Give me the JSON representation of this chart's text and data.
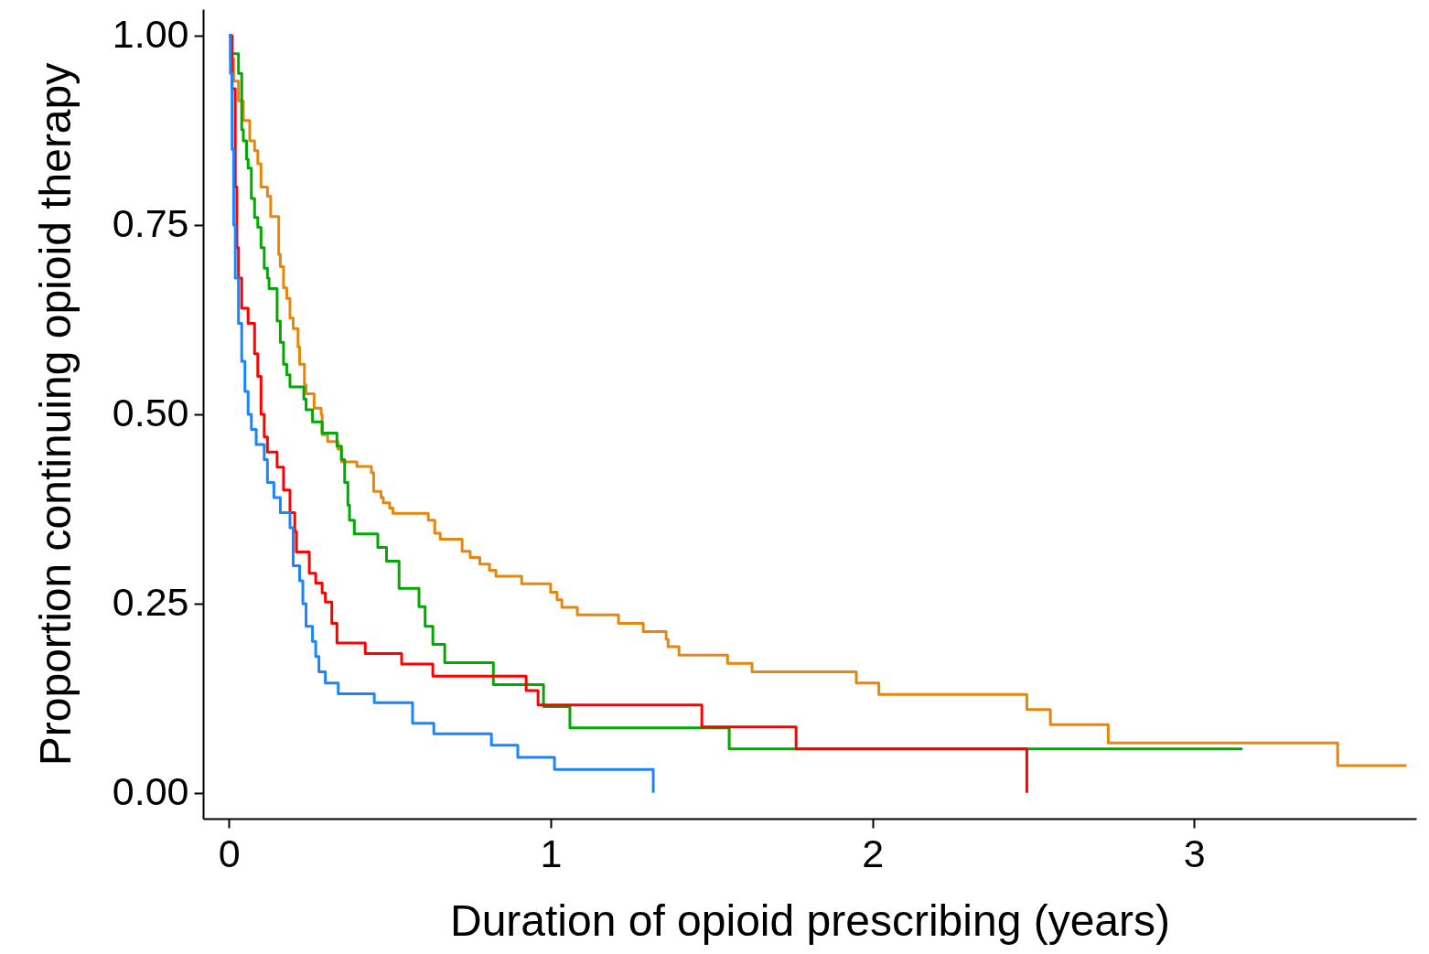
{
  "chart_data": {
    "type": "step",
    "xlabel": "Duration of opioid prescribing (years)",
    "ylabel": "Proportion continuing opioid therapy",
    "xlim": [
      -0.08,
      3.69
    ],
    "ylim": [
      -0.034,
      1.035
    ],
    "xticks": [
      0,
      1,
      2,
      3
    ],
    "yticks": [
      {
        "value": 0,
        "label": "0.00"
      },
      {
        "value": 0.25,
        "label": "0.25"
      },
      {
        "value": 0.5,
        "label": "0.50"
      },
      {
        "value": 0.75,
        "label": "0.75"
      },
      {
        "value": 1,
        "label": "1.00"
      }
    ],
    "grid": false,
    "line_style": "solid",
    "series": [
      {
        "color": "#e8860a",
        "x": [
          0,
          0.005,
          0.015,
          0.03,
          0.045,
          0.065,
          0.08,
          0.09,
          0.1,
          0.12,
          0.13,
          0.155,
          0.16,
          0.17,
          0.18,
          0.19,
          0.2,
          0.215,
          0.22,
          0.235,
          0.24,
          0.265,
          0.287,
          0.29,
          0.307,
          0.339,
          0.35,
          0.398,
          0.443,
          0.45,
          0.473,
          0.48,
          0.5,
          0.51,
          0.62,
          0.64,
          0.657,
          0.725,
          0.75,
          0.78,
          0.81,
          0.83,
          0.91,
          1.0,
          1.02,
          1.035,
          1.083,
          1.211,
          1.288,
          1.359,
          1.365,
          1.399,
          1.55,
          1.626,
          1.95,
          2.02,
          2.48,
          2.553,
          2.733,
          3.446,
          3.66
        ],
        "values": [
          1,
          0.97,
          0.94,
          0.914,
          0.888,
          0.861,
          0.848,
          0.831,
          0.8,
          0.788,
          0.761,
          0.711,
          0.695,
          0.667,
          0.653,
          0.627,
          0.613,
          0.589,
          0.566,
          0.539,
          0.527,
          0.508,
          0.5,
          0.473,
          0.464,
          0.454,
          0.437,
          0.431,
          0.423,
          0.398,
          0.39,
          0.383,
          0.376,
          0.369,
          0.36,
          0.343,
          0.335,
          0.319,
          0.311,
          0.302,
          0.294,
          0.286,
          0.276,
          0.265,
          0.255,
          0.245,
          0.235,
          0.224,
          0.213,
          0.203,
          0.193,
          0.182,
          0.171,
          0.16,
          0.145,
          0.13,
          0.11,
          0.09,
          0.066,
          0.036,
          0.036
        ]
      },
      {
        "color": "#00aa00",
        "x": [
          0,
          0.01,
          0.03,
          0.04,
          0.045,
          0.055,
          0.06,
          0.07,
          0.08,
          0.09,
          0.1,
          0.11,
          0.12,
          0.125,
          0.15,
          0.16,
          0.17,
          0.18,
          0.19,
          0.233,
          0.24,
          0.26,
          0.29,
          0.336,
          0.35,
          0.36,
          0.37,
          0.375,
          0.39,
          0.463,
          0.49,
          0.529,
          0.591,
          0.61,
          0.634,
          0.671,
          0.822,
          0.978,
          1.06,
          1.555,
          3.15
        ],
        "values": [
          1,
          0.976,
          0.95,
          0.876,
          0.861,
          0.837,
          0.825,
          0.785,
          0.76,
          0.747,
          0.72,
          0.693,
          0.68,
          0.666,
          0.623,
          0.595,
          0.566,
          0.552,
          0.536,
          0.52,
          0.506,
          0.49,
          0.475,
          0.458,
          0.44,
          0.41,
          0.38,
          0.36,
          0.342,
          0.324,
          0.306,
          0.27,
          0.246,
          0.22,
          0.196,
          0.172,
          0.143,
          0.114,
          0.086,
          0.058,
          0.058
        ]
      },
      {
        "color": "#ff0000",
        "x": [
          0,
          0.01,
          0.02,
          0.025,
          0.03,
          0.04,
          0.06,
          0.08,
          0.09,
          0.1,
          0.11,
          0.12,
          0.15,
          0.17,
          0.19,
          0.205,
          0.21,
          0.25,
          0.27,
          0.29,
          0.3,
          0.32,
          0.336,
          0.424,
          0.537,
          0.634,
          0.924,
          0.961,
          1.47,
          1.763,
          2.48
        ],
        "values": [
          1,
          0.93,
          0.8,
          0.72,
          0.68,
          0.64,
          0.62,
          0.58,
          0.55,
          0.5,
          0.47,
          0.45,
          0.43,
          0.4,
          0.37,
          0.345,
          0.318,
          0.29,
          0.277,
          0.264,
          0.252,
          0.224,
          0.198,
          0.184,
          0.17,
          0.154,
          0.135,
          0.116,
          0.087,
          0.058,
          0
        ]
      },
      {
        "color": "#1a85ff",
        "x": [
          0,
          0.005,
          0.01,
          0.015,
          0.02,
          0.03,
          0.04,
          0.05,
          0.06,
          0.07,
          0.085,
          0.11,
          0.12,
          0.14,
          0.16,
          0.19,
          0.2,
          0.22,
          0.23,
          0.24,
          0.26,
          0.27,
          0.28,
          0.3,
          0.34,
          0.452,
          0.571,
          0.637,
          0.816,
          0.898,
          1.012,
          1.319
        ],
        "values": [
          1,
          0.95,
          0.85,
          0.75,
          0.68,
          0.62,
          0.57,
          0.53,
          0.5,
          0.48,
          0.46,
          0.44,
          0.41,
          0.39,
          0.37,
          0.35,
          0.3,
          0.28,
          0.25,
          0.22,
          0.2,
          0.18,
          0.16,
          0.145,
          0.131,
          0.119,
          0.092,
          0.078,
          0.063,
          0.047,
          0.031,
          0
        ]
      }
    ]
  }
}
